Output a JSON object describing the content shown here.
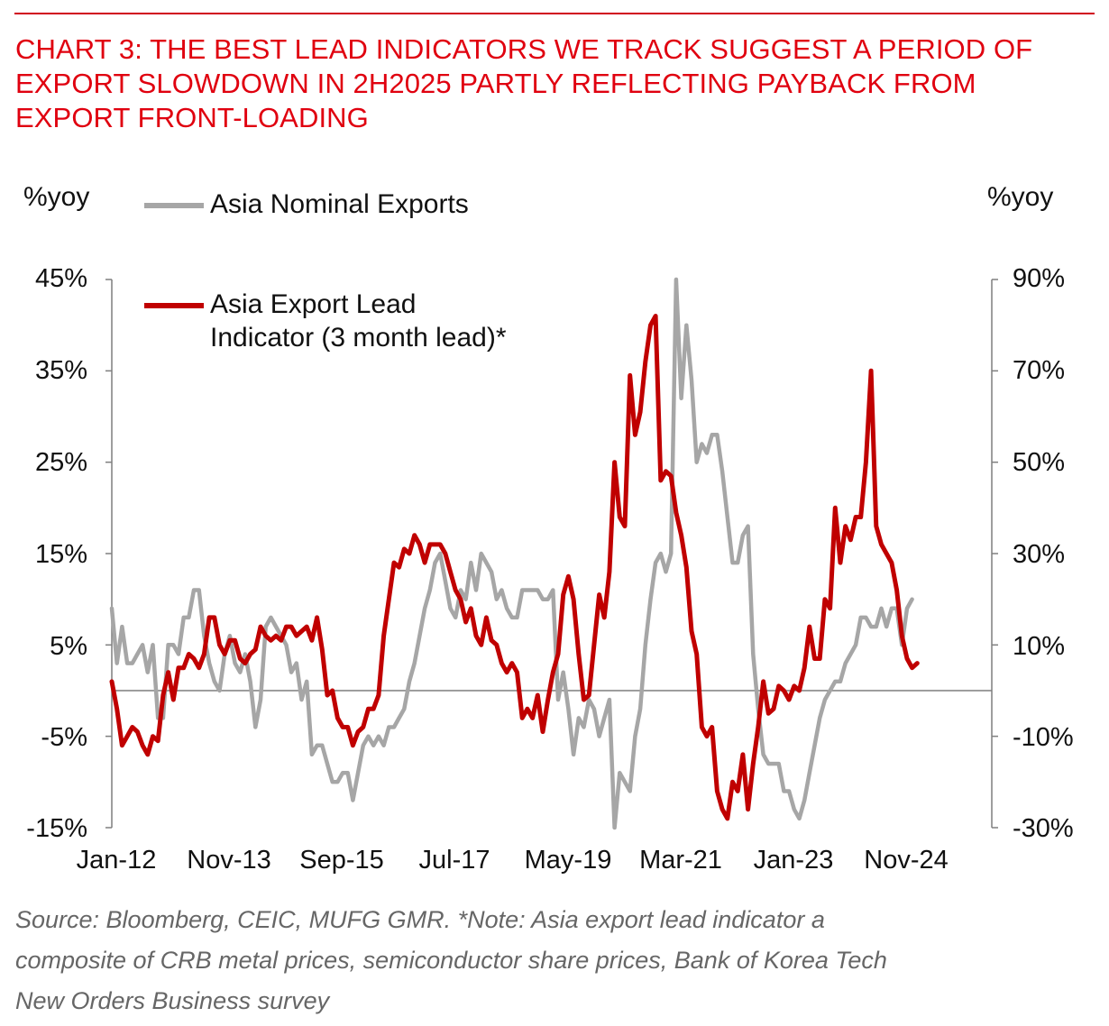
{
  "title_lines": [
    "CHART 3: THE BEST LEAD INDICATORS WE TRACK SUGGEST A PERIOD OF",
    "EXPORT SLOWDOWN IN 2H2025 PARTLY REFLECTING PAYBACK FROM",
    "EXPORT FRONT-LOADING"
  ],
  "source_lines": [
    "Source: Bloomberg, CEIC, MUFG GMR.  *Note: Asia export lead indicator a",
    "composite of CRB metal prices, semiconductor share prices, Bank of Korea Tech",
    "New Orders Business survey"
  ],
  "colors": {
    "title": "#e0000f",
    "grey_series": "#a6a6a6",
    "red_series": "#c00000",
    "axis": "#7f7f7f"
  },
  "chart_data": {
    "type": "line",
    "left_axis_label": "%yoy",
    "right_axis_label": "%yoy",
    "left_ylim": [
      -15,
      45
    ],
    "right_ylim": [
      -30,
      90
    ],
    "left_ticks": [
      "45%",
      "35%",
      "25%",
      "15%",
      "5%",
      "-5%",
      "-15%"
    ],
    "right_ticks": [
      "90%",
      "70%",
      "50%",
      "30%",
      "10%",
      "-10%",
      "-30%"
    ],
    "x_tick_labels": [
      "Jan-12",
      "Nov-13",
      "Sep-15",
      "Jul-17",
      "May-19",
      "Mar-21",
      "Jan-23",
      "Nov-24"
    ],
    "x_tick_months": [
      0,
      22,
      44,
      66,
      88,
      110,
      132,
      154
    ],
    "legend": [
      "Asia Nominal Exports",
      "Asia Export Lead Indicator (3 month lead)*"
    ],
    "legend_lines": {
      "grey": [
        "Asia Nominal Exports"
      ],
      "red": [
        "Asia Export Lead",
        "Indicator (3 month lead)*"
      ]
    },
    "series": [
      {
        "name": "Asia Nominal Exports",
        "axis": "left",
        "start_month": 0,
        "values": [
          9,
          3,
          7,
          3,
          3,
          4,
          5,
          2,
          5,
          -3,
          -3,
          5,
          5,
          4,
          8,
          8,
          11,
          11,
          6,
          3,
          1,
          0,
          4,
          6,
          3,
          2,
          4,
          1,
          -4,
          -1,
          7,
          8,
          7,
          6,
          5,
          2,
          3,
          -1,
          1,
          -7,
          -6,
          -6,
          -8,
          -10,
          -10,
          -9,
          -9,
          -12,
          -9,
          -6,
          -5,
          -6,
          -5,
          -6,
          -4,
          -4,
          -3,
          -2,
          1,
          3,
          6,
          9,
          11,
          14,
          15,
          12,
          9,
          8,
          11,
          10,
          14,
          11,
          15,
          14,
          13,
          10,
          11,
          9,
          8,
          8,
          11,
          11,
          11,
          11,
          10,
          10,
          11,
          -1,
          2,
          -2,
          -7,
          -3,
          -4,
          -1,
          -2,
          -5,
          -3,
          -1,
          -15,
          -9,
          -10,
          -11,
          -5,
          -2,
          5,
          10,
          14,
          15,
          13,
          15,
          46,
          32,
          40,
          34,
          25,
          27,
          26,
          28,
          28,
          24,
          19,
          14,
          14,
          17,
          18,
          4,
          -2,
          -7,
          -8,
          -8,
          -8,
          -11,
          -11,
          -13,
          -14,
          -12,
          -9,
          -6,
          -3,
          -1,
          0,
          1,
          1,
          3,
          4,
          5,
          8,
          8,
          7,
          7,
          9,
          7,
          9,
          9,
          5,
          9,
          10
        ]
      },
      {
        "name": "Asia Export Lead Indicator (3 month lead)*",
        "axis": "right",
        "start_month": 0,
        "values": [
          2,
          -4,
          -12,
          -10,
          -8,
          -9,
          -12,
          -14,
          -10,
          -11,
          -1,
          4,
          -2,
          5,
          5,
          8,
          7,
          5,
          8,
          16,
          16,
          10,
          8,
          11,
          11,
          7,
          6,
          8,
          9,
          14,
          12,
          11,
          12,
          11,
          14,
          14,
          12,
          13,
          14,
          11,
          16,
          9,
          -1,
          0,
          -6,
          -8,
          -8,
          -12,
          -9,
          -8,
          -4,
          -4,
          -1,
          12,
          20,
          28,
          27,
          31,
          30,
          34,
          32,
          28,
          32,
          32,
          32,
          30,
          26,
          22,
          20,
          15,
          18,
          12,
          10,
          16,
          11,
          10,
          6,
          4,
          6,
          4,
          -6,
          -4,
          -6,
          -1,
          -9,
          -2,
          4,
          8,
          21,
          25,
          20,
          8,
          -2,
          -1,
          10,
          21,
          16,
          26,
          50,
          38,
          36,
          69,
          56,
          61,
          72,
          80,
          82,
          46,
          48,
          47,
          39,
          34,
          27,
          13,
          8,
          -8,
          -10,
          -8,
          -22,
          -26,
          -28,
          -20,
          -22,
          -14,
          -26,
          -16,
          -8,
          2,
          -5,
          -4,
          1,
          0,
          -2,
          1,
          0,
          5,
          14,
          7,
          7,
          20,
          18,
          40,
          28,
          36,
          33,
          38,
          38,
          50,
          70,
          36,
          32,
          30,
          28,
          22,
          12,
          7,
          5,
          6
        ]
      }
    ]
  }
}
